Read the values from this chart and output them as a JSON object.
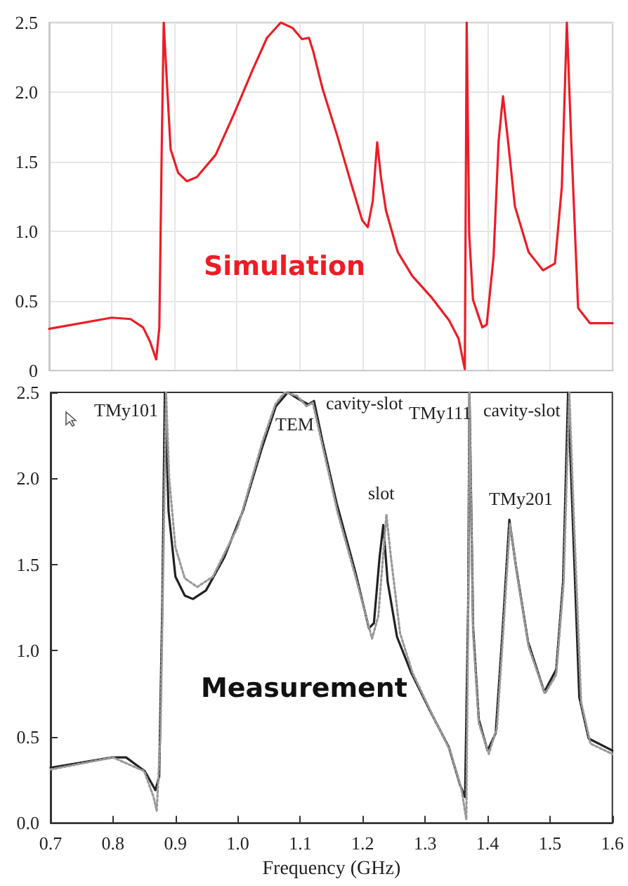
{
  "chart_data": [
    {
      "type": "line",
      "annotations": [
        "Simulation"
      ],
      "xlim": [
        0.7,
        1.6
      ],
      "xticks": [
        0.7,
        0.8,
        0.9,
        1,
        1.1,
        1.2,
        1.3,
        1.4,
        1.5,
        1.6
      ],
      "ylim": [
        0,
        2.5
      ],
      "yticks": [
        0,
        0.5,
        {
          "value": 1,
          "label": "1.0"
        },
        1.5,
        {
          "value": 2,
          "label": "2.0"
        },
        2.5
      ],
      "grid": true,
      "tick_labels": "y",
      "marker": "none",
      "line_style": "solid",
      "series": [
        {
          "color": "#ee1c25",
          "x": [
            0.7,
            0.8,
            0.83,
            0.85,
            0.861,
            0.871,
            0.876,
            0.88,
            0.883,
            0.887,
            0.894,
            0.906,
            0.92,
            0.936,
            0.966,
            0.995,
            1.025,
            1.048,
            1.07,
            1.089,
            1.104,
            1.115,
            1.122,
            1.137,
            1.16,
            1.182,
            1.2,
            1.209,
            1.217,
            1.224,
            1.23,
            1.238,
            1.257,
            1.28,
            1.31,
            1.339,
            1.354,
            1.364,
            1.367,
            1.371,
            1.377,
            1.392,
            1.399,
            1.41,
            1.418,
            1.425,
            1.433,
            1.444,
            1.466,
            1.489,
            1.508,
            1.519,
            1.527,
            1.534,
            1.545,
            1.564,
            1.6
          ],
          "values": [
            0.3,
            0.38,
            0.37,
            0.31,
            0.21,
            0.08,
            0.31,
            1.65,
            2.5,
            2.16,
            1.59,
            1.42,
            1.36,
            1.39,
            1.55,
            1.84,
            2.16,
            2.39,
            2.5,
            2.46,
            2.38,
            2.39,
            2.29,
            2.02,
            1.69,
            1.35,
            1.08,
            1.03,
            1.22,
            1.64,
            1.39,
            1.15,
            0.85,
            0.68,
            0.53,
            0.36,
            0.23,
            0.01,
            2.5,
            0.98,
            0.51,
            0.31,
            0.33,
            0.82,
            1.65,
            1.97,
            1.65,
            1.18,
            0.85,
            0.72,
            0.77,
            1.32,
            2.5,
            1.65,
            0.45,
            0.34,
            0.34
          ]
        }
      ]
    },
    {
      "type": "line",
      "xlabel": "Frequency (GHz)",
      "annotations": [
        "Measurement",
        "TMy101",
        "TEM",
        "cavity-slot",
        "slot",
        "TMy111",
        "cavity-slot",
        "TMy201"
      ],
      "xlim": [
        0.7,
        1.6
      ],
      "xticks": [
        0.7,
        0.8,
        0.9,
        {
          "value": 1,
          "label": "1.0"
        },
        1.1,
        1.2,
        1.3,
        1.4,
        1.5,
        1.6
      ],
      "ylim": [
        0,
        2.5
      ],
      "yticks": [
        {
          "value": 0,
          "label": "0.0"
        },
        0.5,
        {
          "value": 1,
          "label": "1.0"
        },
        1.5,
        {
          "value": 2,
          "label": "2.0"
        },
        2.5
      ],
      "grid": false,
      "marker": "none",
      "series": [
        {
          "color": "#222222",
          "line_style": "solid",
          "x": [
            0.7,
            0.799,
            0.821,
            0.851,
            0.868,
            0.874,
            0.879,
            0.883,
            0.889,
            0.9,
            0.915,
            0.928,
            0.949,
            0.978,
            1.008,
            1.038,
            1.061,
            1.08,
            1.098,
            1.113,
            1.122,
            1.136,
            1.158,
            1.188,
            1.21,
            1.218,
            1.227,
            1.233,
            1.24,
            1.255,
            1.278,
            1.308,
            1.338,
            1.356,
            1.364,
            1.369,
            1.371,
            1.377,
            1.386,
            1.4,
            1.413,
            1.424,
            1.435,
            1.446,
            1.465,
            1.491,
            1.51,
            1.521,
            1.529,
            1.536,
            1.547,
            1.562,
            1.6
          ],
          "values": [
            0.32,
            0.38,
            0.38,
            0.3,
            0.19,
            0.27,
            1.27,
            2.5,
            1.81,
            1.43,
            1.32,
            1.3,
            1.35,
            1.54,
            1.81,
            2.17,
            2.42,
            2.5,
            2.46,
            2.43,
            2.45,
            2.21,
            1.86,
            1.46,
            1.13,
            1.16,
            1.54,
            1.73,
            1.4,
            1.08,
            0.87,
            0.65,
            0.44,
            0.22,
            0.15,
            1.27,
            2.5,
            1.13,
            0.6,
            0.42,
            0.52,
            1.11,
            1.76,
            1.48,
            1.05,
            0.76,
            0.89,
            1.4,
            2.5,
            1.81,
            0.73,
            0.49,
            0.42
          ]
        },
        {
          "color": "#999999",
          "line_style": "dotted",
          "x": [
            0.7,
            0.8,
            0.85,
            0.865,
            0.87,
            0.876,
            0.881,
            0.885,
            0.89,
            0.9,
            0.915,
            0.935,
            0.96,
            1.0,
            1.04,
            1.06,
            1.075,
            1.095,
            1.11,
            1.12,
            1.135,
            1.16,
            1.19,
            1.215,
            1.225,
            1.238,
            1.245,
            1.26,
            1.28,
            1.31,
            1.34,
            1.358,
            1.366,
            1.369,
            1.371,
            1.377,
            1.386,
            1.402,
            1.415,
            1.425,
            1.436,
            1.447,
            1.466,
            1.492,
            1.51,
            1.522,
            1.531,
            1.538,
            1.55,
            1.565,
            1.6
          ],
          "values": [
            0.31,
            0.38,
            0.3,
            0.15,
            0.07,
            0.5,
            1.6,
            2.5,
            2.0,
            1.6,
            1.42,
            1.37,
            1.43,
            1.72,
            2.22,
            2.43,
            2.5,
            2.48,
            2.42,
            2.44,
            2.2,
            1.8,
            1.41,
            1.07,
            1.2,
            1.79,
            1.55,
            1.1,
            0.87,
            0.64,
            0.42,
            0.2,
            0.02,
            1.2,
            2.5,
            1.1,
            0.58,
            0.4,
            0.55,
            1.1,
            1.74,
            1.45,
            1.02,
            0.75,
            0.86,
            1.4,
            2.5,
            1.8,
            0.7,
            0.46,
            0.4
          ]
        }
      ]
    }
  ]
}
